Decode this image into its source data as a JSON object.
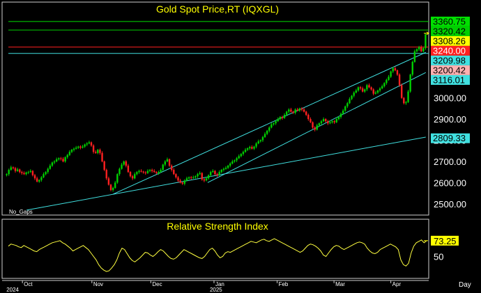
{
  "chart_data": [
    {
      "type": "candlestick",
      "title": "Gold Spot Price,RT (IQXGL)",
      "corner_note": "No_Gaps",
      "ylim": [
        2450,
        3390
      ],
      "y_ticks": [
        "2500.00",
        "2600.00",
        "2700.00",
        "2800.00",
        "2900.00",
        "3000.00"
      ],
      "price_tags": [
        {
          "value": "3360.75",
          "num": 3360.75,
          "color": "#00e000",
          "text_color": "#000000",
          "line": true
        },
        {
          "value": "3320.42",
          "num": 3320.42,
          "color": "#00d000",
          "text_color": "#000000",
          "line": true
        },
        {
          "value": "3308.26",
          "num": 3308.26,
          "color": "#ffff00",
          "text_color": "#000000",
          "line": false
        },
        {
          "value": "3240.00",
          "num": 3240.0,
          "color": "#ff2020",
          "text_color": "#ffffff",
          "line": true
        },
        {
          "value": "3209.98",
          "num": 3209.98,
          "color": "#40e0e0",
          "text_color": "#000000",
          "line": true
        },
        {
          "value": "3200.42",
          "num": 3200.42,
          "color": "#ffb0b0",
          "text_color": "#000000",
          "line": false
        },
        {
          "value": "3116.01",
          "num": 3116.01,
          "color": "#40e0e0",
          "text_color": "#000000",
          "line": false
        },
        {
          "value": "2809.33",
          "num": 2809.33,
          "color": "#40e0e0",
          "text_color": "#000000",
          "line": false
        }
      ],
      "close_series": [
        2640,
        2660,
        2672,
        2668,
        2655,
        2662,
        2650,
        2645,
        2640,
        2648,
        2650,
        2655,
        2635,
        2620,
        2605,
        2612,
        2625,
        2640,
        2650,
        2665,
        2680,
        2695,
        2700,
        2710,
        2715,
        2712,
        2700,
        2720,
        2730,
        2745,
        2755,
        2760,
        2765,
        2770,
        2765,
        2770,
        2780,
        2785,
        2790,
        2775,
        2745,
        2740,
        2755,
        2740,
        2700,
        2660,
        2620,
        2590,
        2565,
        2575,
        2600,
        2640,
        2665,
        2685,
        2700,
        2680,
        2650,
        2630,
        2620,
        2640,
        2650,
        2655,
        2652,
        2648,
        2645,
        2655,
        2660,
        2655,
        2650,
        2645,
        2650,
        2660,
        2685,
        2700,
        2710,
        2680,
        2660,
        2640,
        2625,
        2610,
        2600,
        2595,
        2610,
        2620,
        2625,
        2622,
        2625,
        2630,
        2640,
        2645,
        2615,
        2610,
        2620,
        2635,
        2650,
        2655,
        2640,
        2635,
        2650,
        2660,
        2665,
        2670,
        2680,
        2690,
        2700,
        2705,
        2715,
        2725,
        2735,
        2745,
        2755,
        2762,
        2768,
        2760,
        2770,
        2785,
        2795,
        2800,
        2815,
        2830,
        2845,
        2860,
        2875,
        2880,
        2890,
        2900,
        2910,
        2905,
        2920,
        2935,
        2945,
        2935,
        2930,
        2945,
        2940,
        2950,
        2945,
        2935,
        2920,
        2900,
        2885,
        2860,
        2850,
        2870,
        2880,
        2890,
        2900,
        2890,
        2880,
        2885,
        2890,
        2885,
        2900,
        2910,
        2925,
        2940,
        2960,
        2975,
        2995,
        3010,
        3025,
        3035,
        3050,
        3045,
        3030,
        3040,
        3060,
        3050,
        3040,
        3020,
        3025,
        3035,
        3045,
        3055,
        3070,
        3085,
        3100,
        3125,
        3140,
        3130,
        3110,
        3060,
        3000,
        2975,
        2980,
        3030,
        3110,
        3170,
        3220,
        3230,
        3240,
        3220,
        3235,
        3300
      ],
      "trendlines": [
        {
          "x0": 0.05,
          "y0": 2470,
          "x1": 0.998,
          "y1": 2815,
          "color": "#40e0e0"
        },
        {
          "x0": 0.255,
          "y0": 2545,
          "x1": 0.998,
          "y1": 3215,
          "color": "#40e0e0"
        },
        {
          "x0": 0.48,
          "y0": 2600,
          "x1": 0.998,
          "y1": 3120,
          "color": "#40e0e0"
        }
      ]
    },
    {
      "type": "line",
      "title": "Relative Strength Index",
      "ylim": [
        20,
        85
      ],
      "y_tick": "50",
      "last_value_label": "73.25",
      "values": [
        65,
        68,
        67,
        66,
        64,
        63,
        66,
        64,
        62,
        60,
        58,
        57,
        60,
        62,
        64,
        66,
        68,
        70,
        71,
        72,
        73,
        70,
        68,
        65,
        62,
        58,
        60,
        62,
        64,
        66,
        63,
        60,
        55,
        50,
        45,
        38,
        33,
        30,
        28,
        29,
        33,
        38,
        45,
        55,
        62,
        60,
        54,
        48,
        44,
        42,
        45,
        48,
        52,
        56,
        55,
        52,
        50,
        53,
        57,
        60,
        58,
        54,
        50,
        47,
        46,
        48,
        52,
        56,
        60,
        58,
        56,
        54,
        52,
        50,
        48,
        47,
        50,
        55,
        60,
        62,
        58,
        52,
        48,
        50,
        55,
        57,
        56,
        58,
        60,
        62,
        64,
        66,
        68,
        70,
        72,
        71,
        70,
        72,
        74,
        75,
        73,
        72,
        74,
        76,
        74,
        72,
        70,
        68,
        66,
        64,
        62,
        60,
        58,
        56,
        58,
        62,
        66,
        68,
        67,
        65,
        62,
        58,
        52,
        50,
        55,
        60,
        64,
        66,
        65,
        62,
        60,
        62,
        64,
        66,
        68,
        70,
        71,
        70,
        68,
        62,
        58,
        55,
        54,
        56,
        60,
        62,
        64,
        66,
        68,
        66,
        64,
        60,
        45,
        38,
        36,
        40,
        55,
        65,
        70,
        72,
        74,
        70,
        73
      ]
    }
  ],
  "x_axis": {
    "months": [
      {
        "label": "Oct",
        "pos": 0.04
      },
      {
        "label": "Nov",
        "pos": 0.205
      },
      {
        "label": "Dec",
        "pos": 0.345
      },
      {
        "label": "Jan",
        "pos": 0.495
      },
      {
        "label": "Feb",
        "pos": 0.645
      },
      {
        "label": "Mar",
        "pos": 0.78
      },
      {
        "label": "Apr",
        "pos": 0.915
      }
    ],
    "years": [
      {
        "label": "2024",
        "pos": 0.002
      },
      {
        "label": "2025",
        "pos": 0.485
      }
    ],
    "period_label": "Day"
  },
  "colors": {
    "background": "#000000",
    "frame": "#d0d0d0",
    "up_candle": "#00d000",
    "down_candle": "#ff2020",
    "rsi_line": "#ffff40",
    "title": "#ffff00",
    "cursor_arrow": "#ffff00"
  }
}
